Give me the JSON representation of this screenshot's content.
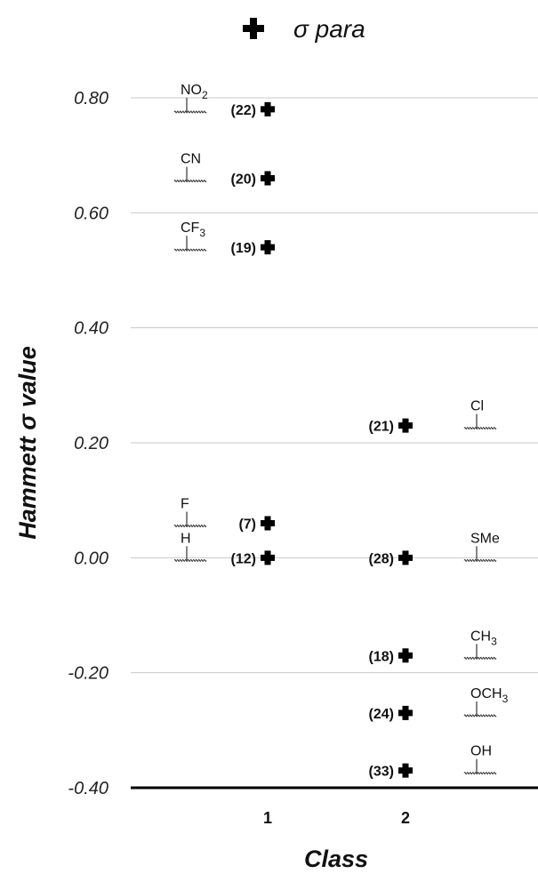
{
  "chart_data": {
    "type": "scatter",
    "ylabel": "Hammett σ value",
    "xlabel": "Class",
    "ylim": [
      -0.4,
      0.8
    ],
    "yticks": [
      "0.80",
      "0.60",
      "0.40",
      "0.20",
      "0.00",
      "-0.20",
      "-0.40"
    ],
    "ytick_values": [
      0.8,
      0.6,
      0.4,
      0.2,
      0.0,
      -0.2,
      -0.4
    ],
    "xticks": [
      "1",
      "2"
    ],
    "grid": true,
    "legend": {
      "position": "top-center",
      "marker": "✚",
      "label": "σ para"
    },
    "series": [
      {
        "name": "σ para",
        "marker": "cross",
        "points": [
          {
            "class": 1,
            "y": 0.78,
            "label": "(22)",
            "substituent": "NO",
            "sub": "2"
          },
          {
            "class": 1,
            "y": 0.66,
            "label": "(20)",
            "substituent": "CN",
            "sub": ""
          },
          {
            "class": 1,
            "y": 0.54,
            "label": "(19)",
            "substituent": "CF",
            "sub": "3"
          },
          {
            "class": 1,
            "y": 0.06,
            "label": "(7)",
            "substituent": "F",
            "sub": ""
          },
          {
            "class": 1,
            "y": 0.0,
            "label": "(12)",
            "substituent": "H",
            "sub": ""
          },
          {
            "class": 2,
            "y": 0.23,
            "label": "(21)",
            "substituent": "Cl",
            "sub": ""
          },
          {
            "class": 2,
            "y": 0.0,
            "label": "(28)",
            "substituent": "SMe",
            "sub": ""
          },
          {
            "class": 2,
            "y": -0.17,
            "label": "(18)",
            "substituent": "CH",
            "sub": "3"
          },
          {
            "class": 2,
            "y": -0.27,
            "label": "(24)",
            "substituent": "OCH",
            "sub": "3"
          },
          {
            "class": 2,
            "y": -0.37,
            "label": "(33)",
            "substituent": "OH",
            "sub": ""
          }
        ]
      }
    ]
  }
}
